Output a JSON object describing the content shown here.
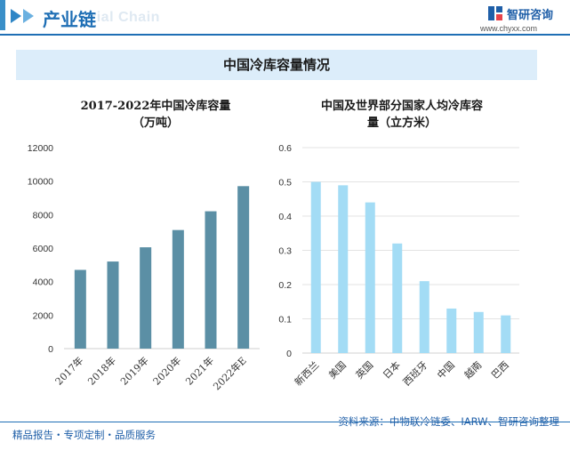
{
  "header": {
    "section_title": "产业链",
    "section_subtitle": "rial Chain",
    "brand_name": "智研咨询",
    "brand_url": "www.chyxx.com"
  },
  "banner": {
    "title": "中国冷库容量情况"
  },
  "footer": {
    "left_text": "精品报告・专项定制・品质服务",
    "source_text": "资料来源：中物联冷链委、IARW、智研咨询整理"
  },
  "colors": {
    "bar_left": "#5b8fa5",
    "bar_right": "#a3dcf5",
    "accent": "#1f6fb5"
  },
  "chart_data": [
    {
      "type": "bar",
      "title_line1": "2017-2022年中国冷库容量",
      "title_line2": "（万吨）",
      "categories": [
        "2017年",
        "2018年",
        "2019年",
        "2020年",
        "2021年",
        "2022年E"
      ],
      "values": [
        4700,
        5200,
        6050,
        7080,
        8200,
        9700
      ],
      "ylim": [
        0,
        12000
      ],
      "yticks": [
        0,
        2000,
        4000,
        6000,
        8000,
        10000,
        12000
      ],
      "grid": false
    },
    {
      "type": "bar",
      "title_line1": "中国及世界部分国家人均冷库容",
      "title_line2": "量（立方米）",
      "categories": [
        "新西兰",
        "美国",
        "英国",
        "日本",
        "西班牙",
        "中国",
        "越南",
        "巴西"
      ],
      "values": [
        0.5,
        0.49,
        0.44,
        0.32,
        0.21,
        0.13,
        0.12,
        0.11
      ],
      "ylim": [
        0,
        0.6
      ],
      "yticks": [
        "0",
        "0.1",
        "0.2",
        "0.3",
        "0.4",
        "0.5",
        "0.6"
      ],
      "grid": true
    }
  ]
}
